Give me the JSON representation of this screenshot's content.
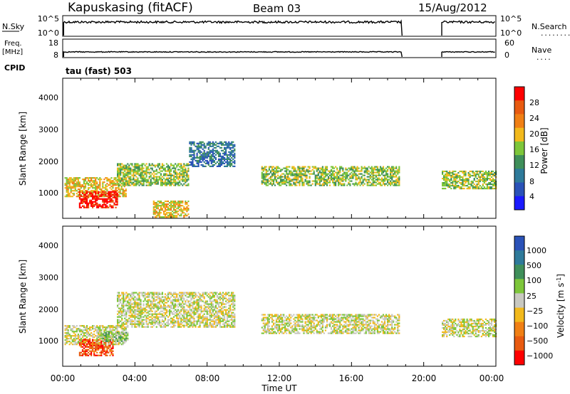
{
  "header": {
    "station": "Kapuskasing (fitACF)",
    "beam": "Beam 03",
    "date": "15/Aug/2012"
  },
  "sky_panel": {
    "left_label": "N.Sky",
    "left_ticks": [
      "10^5",
      "10^0"
    ],
    "right_ticks": [
      "10^5",
      "10^0"
    ],
    "right_label": "N.Search",
    "right_dots": "........"
  },
  "freq_panel": {
    "left_label_top": "Freq.",
    "left_label_bottom": "[MHz]",
    "left_ticks": [
      "18",
      "8"
    ],
    "right_ticks": [
      "60",
      "0"
    ],
    "right_label": "Nave",
    "right_dots": "....",
    "cpid_label": "CPID",
    "cpid_value": "tau (fast) 503"
  },
  "colors": {
    "power_scale": [
      "#1a1aff",
      "#2a52b8",
      "#2e7a9a",
      "#3f8f5a",
      "#7dc63a",
      "#f2b91c",
      "#f07f14",
      "#e85a10",
      "#ff0000"
    ],
    "velocity_scale": [
      "#2a52b8",
      "#2e7a9a",
      "#3f8f5a",
      "#7dc63a",
      "#c8c8c0",
      "#f2b91c",
      "#f07f14",
      "#e85a10",
      "#ff0000"
    ],
    "ground_scatter": "#c8c8c0"
  },
  "chart_data": [
    {
      "type": "heatmap",
      "panel": "power",
      "ylabel": "Slant Range [km]",
      "ylim": [
        180,
        4600
      ],
      "y_ticks": [
        "1000",
        "2000",
        "3000",
        "4000"
      ],
      "xlim_hours": [
        0,
        24
      ],
      "colorbar_label": "Power [dB]",
      "colorbar_ticks": [
        "4",
        "8",
        "12",
        "16",
        "20",
        "24",
        "28"
      ],
      "scatter_regions": [
        {
          "t0": 0.1,
          "t1": 3.5,
          "r0": 850,
          "r1": 1450,
          "level": 5
        },
        {
          "t0": 0.9,
          "t1": 3.0,
          "r0": 500,
          "r1": 1000,
          "level": 8
        },
        {
          "t0": 3.0,
          "t1": 7.0,
          "r0": 1200,
          "r1": 1900,
          "level": 4
        },
        {
          "t0": 7.0,
          "t1": 9.5,
          "r0": 1800,
          "r1": 2600,
          "level": 2
        },
        {
          "t0": 5.0,
          "t1": 7.0,
          "r0": 200,
          "r1": 700,
          "level": 5
        },
        {
          "t0": 11.0,
          "t1": 18.6,
          "r0": 1200,
          "r1": 1800,
          "level": 4
        },
        {
          "t0": 21.0,
          "t1": 24.0,
          "r0": 1100,
          "r1": 1650,
          "level": 4
        }
      ]
    },
    {
      "type": "heatmap",
      "panel": "velocity",
      "ylabel": "Slant Range [km]",
      "ylim": [
        180,
        4600
      ],
      "y_ticks": [
        "1000",
        "2000",
        "3000",
        "4000"
      ],
      "xlim_hours": [
        0,
        24
      ],
      "x_ticks": [
        "00:00",
        "04:00",
        "08:00",
        "12:00",
        "16:00",
        "20:00",
        "00:00"
      ],
      "xlabel": "Time UT",
      "colorbar_label": "Velocity [m s",
      "colorbar_label_sup": "-1",
      "colorbar_label_end": "]",
      "colorbar_ticks": [
        "1000",
        "500",
        "100",
        "25",
        "−25",
        "−100",
        "−500",
        "−1000"
      ],
      "scatter_regions": [
        {
          "t0": 0.1,
          "t1": 3.5,
          "r0": 850,
          "r1": 1450,
          "level": 4
        },
        {
          "t0": 0.9,
          "t1": 2.8,
          "r0": 500,
          "r1": 1000,
          "level": 7
        },
        {
          "t0": 2.2,
          "t1": 3.6,
          "r0": 950,
          "r1": 1250,
          "level": 3
        },
        {
          "t0": 3.0,
          "t1": 9.5,
          "r0": 1400,
          "r1": 2500,
          "level": 4
        },
        {
          "t0": 11.0,
          "t1": 18.6,
          "r0": 1200,
          "r1": 1800,
          "level": 4
        },
        {
          "t0": 21.0,
          "t1": 24.0,
          "r0": 1100,
          "r1": 1650,
          "level": 4
        }
      ]
    }
  ]
}
